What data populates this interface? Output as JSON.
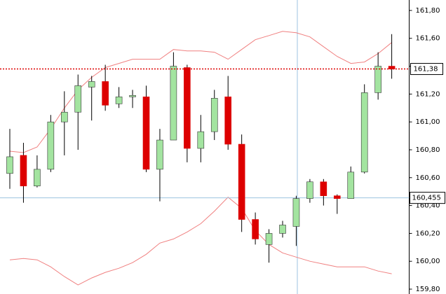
{
  "chart_data": {
    "type": "candlestick",
    "open": [
      160.63,
      160.76,
      160.54,
      160.66,
      161.0,
      161.07,
      161.25,
      161.29,
      161.13,
      161.18,
      161.18,
      160.66,
      160.87,
      161.39,
      160.81,
      160.93,
      161.18,
      160.84,
      160.3,
      160.12,
      160.2,
      160.25,
      160.45,
      160.57,
      160.47,
      160.45,
      160.64,
      161.21,
      161.4
    ],
    "high": [
      160.95,
      160.85,
      160.76,
      161.05,
      161.22,
      161.34,
      161.33,
      161.41,
      161.25,
      161.23,
      161.26,
      160.95,
      161.5,
      161.41,
      161.05,
      161.23,
      161.33,
      160.91,
      160.35,
      160.23,
      160.29,
      160.47,
      160.59,
      160.59,
      160.48,
      160.68,
      161.27,
      161.5,
      161.63
    ],
    "low": [
      160.52,
      160.42,
      160.53,
      160.64,
      160.76,
      160.8,
      161.01,
      161.08,
      161.1,
      161.1,
      160.64,
      160.43,
      160.87,
      160.71,
      160.71,
      160.87,
      160.8,
      160.21,
      160.12,
      159.99,
      160.17,
      160.11,
      160.42,
      160.4,
      160.34,
      160.45,
      160.63,
      161.16,
      161.31
    ],
    "close": [
      160.75,
      160.54,
      160.66,
      161.0,
      161.07,
      161.26,
      161.29,
      161.12,
      161.18,
      161.19,
      160.66,
      160.87,
      161.4,
      160.81,
      160.93,
      161.17,
      160.84,
      160.3,
      160.16,
      160.2,
      160.26,
      160.45,
      160.57,
      160.47,
      160.45,
      160.64,
      161.21,
      161.4,
      161.38
    ],
    "up_color": "#a3e4a0",
    "down_color": "#dd0000",
    "upper_band": {
      "color": "#f08080",
      "values": [
        160.79,
        160.78,
        160.82,
        160.95,
        161.1,
        161.23,
        161.32,
        161.39,
        161.42,
        161.45,
        161.45,
        161.45,
        161.52,
        161.51,
        161.51,
        161.5,
        161.45,
        161.52,
        161.59,
        161.62,
        161.65,
        161.64,
        161.61,
        161.54,
        161.47,
        161.42,
        161.43,
        161.49,
        161.57
      ]
    },
    "lower_band": {
      "color": "#f08080",
      "values": [
        160.01,
        160.02,
        160.01,
        159.96,
        159.89,
        159.83,
        159.88,
        159.92,
        159.95,
        159.99,
        160.05,
        160.13,
        160.16,
        160.21,
        160.27,
        160.36,
        160.46,
        160.38,
        160.22,
        160.12,
        160.06,
        160.03,
        160.0,
        159.98,
        159.96,
        159.96,
        159.96,
        159.93,
        159.91
      ]
    },
    "ylim": [
      159.765,
      161.875
    ],
    "yticks": [
      {
        "value": 161.8,
        "label": "161,80"
      },
      {
        "value": 161.6,
        "label": "161,60"
      },
      {
        "value": 161.4,
        "label": "161,40"
      },
      {
        "value": 161.2,
        "label": "161,20"
      },
      {
        "value": 161.0,
        "label": "161,00"
      },
      {
        "value": 160.8,
        "label": "160,80"
      },
      {
        "value": 160.6,
        "label": "160,60"
      },
      {
        "value": 160.4,
        "label": "160,40"
      },
      {
        "value": 160.2,
        "label": "160,20"
      },
      {
        "value": 160.0,
        "label": "160,00"
      },
      {
        "value": 159.8,
        "label": "159,80"
      }
    ],
    "last_price": {
      "value": 161.38,
      "label": "161,38",
      "color": "#dd0000"
    },
    "crosshair": {
      "value": 160.455,
      "label": "160,455",
      "color": "#9cc3e0"
    }
  }
}
